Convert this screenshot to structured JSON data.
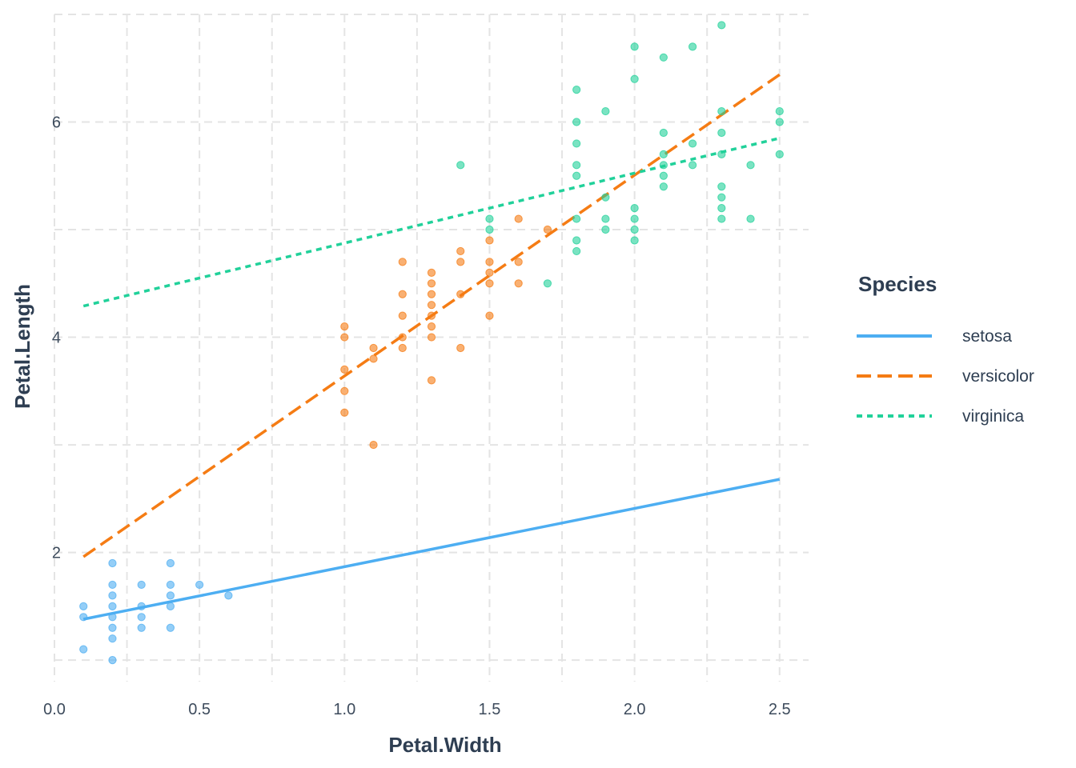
{
  "chart_data": {
    "type": "scatter",
    "xlabel": "Petal.Width",
    "ylabel": "Petal.Length",
    "xlim": [
      0.0,
      2.6
    ],
    "ylim": [
      0.8,
      7.0
    ],
    "x_ticks": [
      0.0,
      0.5,
      1.0,
      1.5,
      2.0,
      2.5
    ],
    "x_tick_labels": [
      "0.0",
      "0.5",
      "1.0",
      "1.5",
      "2.0",
      "2.5"
    ],
    "y_ticks": [
      2,
      4,
      6
    ],
    "y_tick_labels": [
      "2",
      "4",
      "6"
    ],
    "grid": true,
    "legend": {
      "title": "Species",
      "position": "right"
    },
    "series": [
      {
        "name": "setosa",
        "color": "#4daef2",
        "line_style": "solid",
        "fit_line": [
          [
            0.1,
            1.38
          ],
          [
            2.5,
            2.68
          ]
        ],
        "points": [
          [
            0.1,
            1.5
          ],
          [
            0.1,
            1.4
          ],
          [
            0.1,
            1.1
          ],
          [
            0.2,
            1.9
          ],
          [
            0.2,
            1.7
          ],
          [
            0.2,
            1.6
          ],
          [
            0.2,
            1.5
          ],
          [
            0.2,
            1.4
          ],
          [
            0.2,
            1.3
          ],
          [
            0.2,
            1.2
          ],
          [
            0.2,
            1.0
          ],
          [
            0.3,
            1.7
          ],
          [
            0.3,
            1.5
          ],
          [
            0.3,
            1.4
          ],
          [
            0.3,
            1.3
          ],
          [
            0.4,
            1.9
          ],
          [
            0.4,
            1.7
          ],
          [
            0.4,
            1.6
          ],
          [
            0.4,
            1.5
          ],
          [
            0.4,
            1.3
          ],
          [
            0.5,
            1.7
          ],
          [
            0.6,
            1.6
          ]
        ]
      },
      {
        "name": "versicolor",
        "color": "#f57c14",
        "line_style": "dashed",
        "fit_line": [
          [
            0.1,
            1.96
          ],
          [
            2.5,
            6.44
          ]
        ],
        "points": [
          [
            1.0,
            4.1
          ],
          [
            1.0,
            4.0
          ],
          [
            1.0,
            3.7
          ],
          [
            1.0,
            3.5
          ],
          [
            1.0,
            3.3
          ],
          [
            1.1,
            3.9
          ],
          [
            1.1,
            3.8
          ],
          [
            1.1,
            3.0
          ],
          [
            1.2,
            4.7
          ],
          [
            1.2,
            4.4
          ],
          [
            1.2,
            4.2
          ],
          [
            1.2,
            4.0
          ],
          [
            1.2,
            3.9
          ],
          [
            1.3,
            4.6
          ],
          [
            1.3,
            4.5
          ],
          [
            1.3,
            4.4
          ],
          [
            1.3,
            4.3
          ],
          [
            1.3,
            4.2
          ],
          [
            1.3,
            4.1
          ],
          [
            1.3,
            4.0
          ],
          [
            1.3,
            3.6
          ],
          [
            1.4,
            4.8
          ],
          [
            1.4,
            4.7
          ],
          [
            1.4,
            4.4
          ],
          [
            1.4,
            3.9
          ],
          [
            1.5,
            4.9
          ],
          [
            1.5,
            4.7
          ],
          [
            1.5,
            4.6
          ],
          [
            1.5,
            4.5
          ],
          [
            1.5,
            4.2
          ],
          [
            1.6,
            5.1
          ],
          [
            1.6,
            4.7
          ],
          [
            1.6,
            4.5
          ],
          [
            1.7,
            5.0
          ]
        ]
      },
      {
        "name": "virginica",
        "color": "#21d19a",
        "line_style": "dotted",
        "fit_line": [
          [
            0.1,
            4.29
          ],
          [
            2.5,
            5.85
          ]
        ],
        "points": [
          [
            1.4,
            5.6
          ],
          [
            1.5,
            5.1
          ],
          [
            1.5,
            5.0
          ],
          [
            1.7,
            4.5
          ],
          [
            1.8,
            6.3
          ],
          [
            1.8,
            6.0
          ],
          [
            1.8,
            5.8
          ],
          [
            1.8,
            5.6
          ],
          [
            1.8,
            5.5
          ],
          [
            1.8,
            5.1
          ],
          [
            1.8,
            4.9
          ],
          [
            1.8,
            4.8
          ],
          [
            1.9,
            6.1
          ],
          [
            1.9,
            5.3
          ],
          [
            1.9,
            5.1
          ],
          [
            1.9,
            5.0
          ],
          [
            2.0,
            6.7
          ],
          [
            2.0,
            6.4
          ],
          [
            2.0,
            5.2
          ],
          [
            2.0,
            5.1
          ],
          [
            2.0,
            5.0
          ],
          [
            2.0,
            4.9
          ],
          [
            2.1,
            6.6
          ],
          [
            2.1,
            5.9
          ],
          [
            2.1,
            5.7
          ],
          [
            2.1,
            5.6
          ],
          [
            2.1,
            5.5
          ],
          [
            2.1,
            5.4
          ],
          [
            2.2,
            6.7
          ],
          [
            2.2,
            5.8
          ],
          [
            2.2,
            5.6
          ],
          [
            2.3,
            6.9
          ],
          [
            2.3,
            6.1
          ],
          [
            2.3,
            5.9
          ],
          [
            2.3,
            5.7
          ],
          [
            2.3,
            5.4
          ],
          [
            2.3,
            5.3
          ],
          [
            2.3,
            5.2
          ],
          [
            2.3,
            5.1
          ],
          [
            2.4,
            5.6
          ],
          [
            2.4,
            5.1
          ],
          [
            2.5,
            6.1
          ],
          [
            2.5,
            6.0
          ],
          [
            2.5,
            5.7
          ]
        ]
      }
    ]
  }
}
